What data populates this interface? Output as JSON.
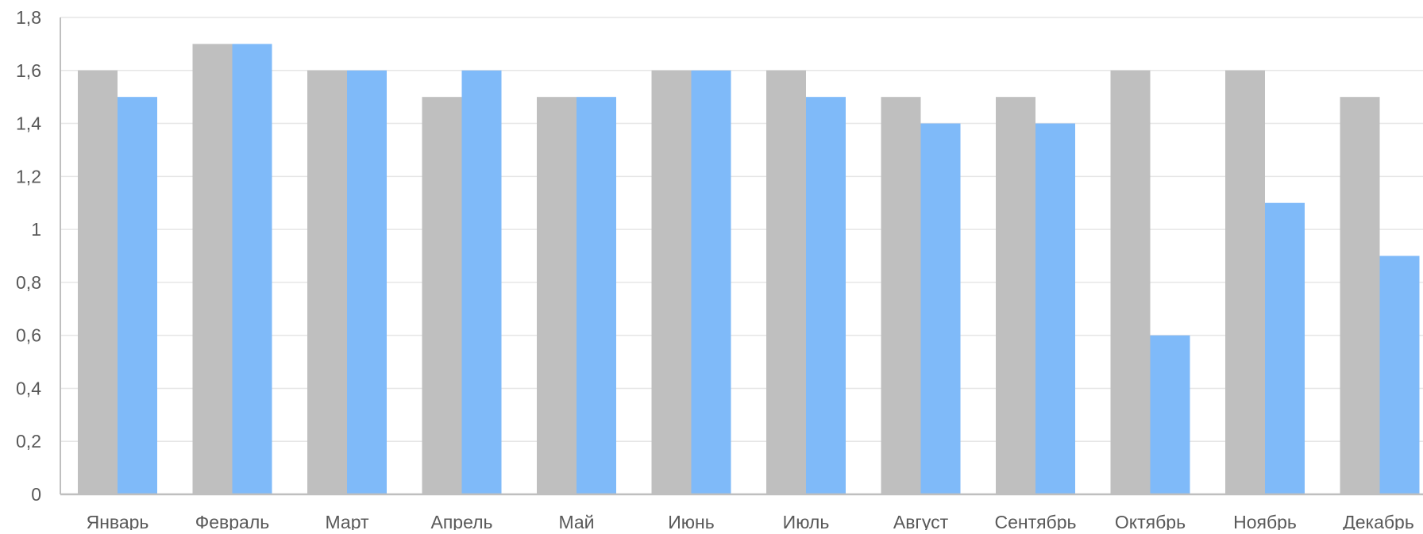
{
  "chart_data": {
    "type": "bar",
    "title": "",
    "xlabel": "",
    "ylabel": "",
    "categories": [
      "Январь",
      "Февраль",
      "Март",
      "Апрель",
      "Май",
      "Июнь",
      "Июль",
      "Август",
      "Сентябрь",
      "Октябрь",
      "Ноябрь",
      "Декабрь"
    ],
    "series": [
      {
        "color": "#bfbfbf",
        "values": [
          1.6,
          1.7,
          1.6,
          1.5,
          1.5,
          1.6,
          1.6,
          1.5,
          1.5,
          1.6,
          1.6,
          1.5
        ]
      },
      {
        "color": "#7fbaf9",
        "values": [
          1.5,
          1.7,
          1.6,
          1.6,
          1.5,
          1.6,
          1.5,
          1.4,
          1.4,
          0.6,
          1.1,
          0.9
        ]
      }
    ],
    "ylim": [
      0,
      1.8
    ],
    "y_ticks": [
      "0",
      "0,2",
      "0,4",
      "0,6",
      "0,8",
      "1",
      "1,2",
      "1,4",
      "1,6",
      "1,8"
    ],
    "grid": true,
    "legend": "none"
  },
  "style": {
    "grid_color": "#e6e6e6",
    "axis_color": "#bfbfbf",
    "label_color": "#595959"
  }
}
